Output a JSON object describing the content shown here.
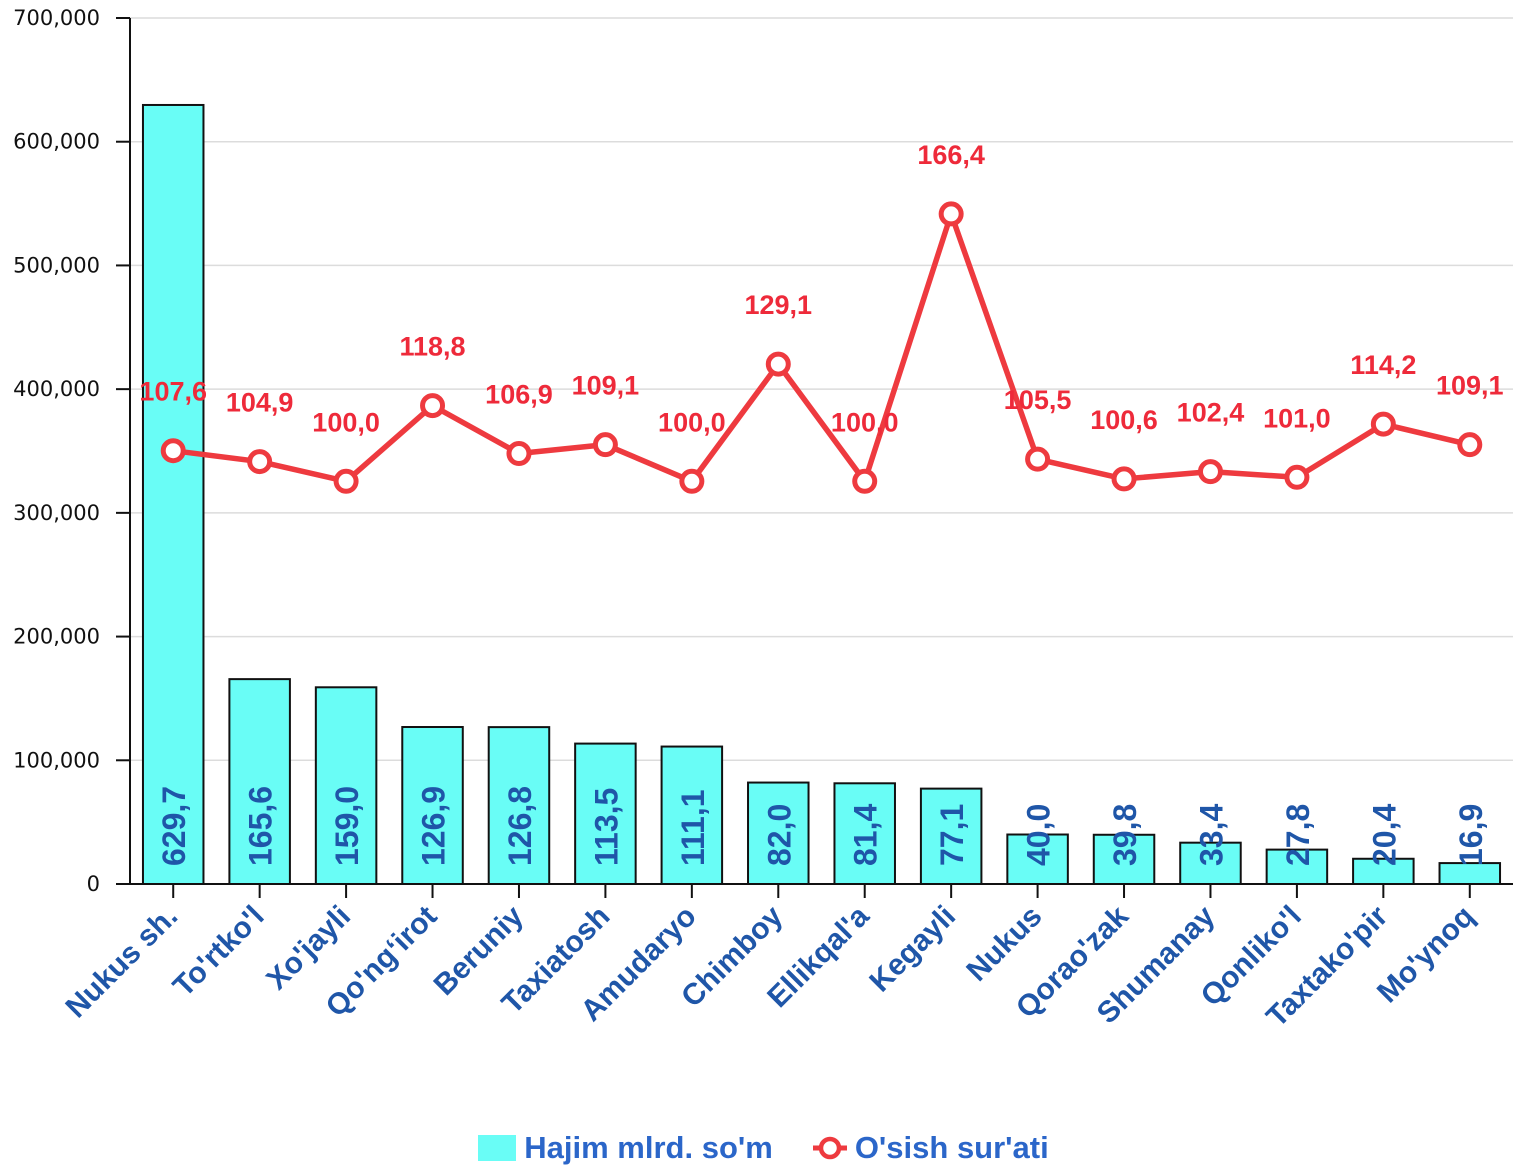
{
  "chart_data": {
    "type": "bar",
    "categories": [
      "Nukus sh.",
      "To'rtko'l",
      "Xo'jayli",
      "Qo'ng‘irot",
      "Beruniy",
      "Taxiatosh",
      "Amudaryo",
      "Chimboy",
      "Ellikqal'a",
      "Kegayli",
      "Nukus",
      "Qorao'zak",
      "Shumanay",
      "Qonliko'l",
      "Taxtako'pir",
      "Mo'ynoq"
    ],
    "series": [
      {
        "name": "Hajim mlrd. so'm",
        "type": "bar",
        "values": [
          629700,
          165600,
          159000,
          126900,
          126800,
          113500,
          111100,
          82000,
          81400,
          77100,
          40000,
          39800,
          33400,
          27800,
          20400,
          16900
        ],
        "labels": [
          "629,7",
          "165,6",
          "159,0",
          "126,9",
          "126,8",
          "113,5",
          "111,1",
          "82,0",
          "81,4",
          "77,1",
          "40,0",
          "39,8",
          "33,4",
          "27,8",
          "20,4",
          "16,9"
        ]
      },
      {
        "name": "O'sish sur'ati",
        "type": "line",
        "values": [
          107.6,
          104.9,
          100.0,
          118.8,
          106.9,
          109.1,
          100.0,
          129.1,
          100.0,
          166.4,
          105.5,
          100.6,
          102.4,
          101.0,
          114.2,
          109.1
        ],
        "labels": [
          "107,6",
          "104,9",
          "100,0",
          "118,8",
          "106,9",
          "109,1",
          "100,0",
          "129,1",
          "100,0",
          "166,4",
          "105,5",
          "100,6",
          "102,4",
          "101,0",
          "114,2",
          "109,1"
        ]
      }
    ],
    "yaxis": {
      "ylim": [
        0,
        700000
      ],
      "ticks": [
        0,
        100000,
        200000,
        300000,
        400000,
        500000,
        600000,
        700000
      ],
      "tick_labels": [
        "0",
        "100,000",
        "200,000",
        "300,000",
        "400,000",
        "500,000",
        "600,000",
        "700,000"
      ]
    },
    "grid": true,
    "legend": "bottom",
    "colors": {
      "bar": "#69fdf6",
      "bar_edge": "#111111",
      "line": "#ee3a3f",
      "bar_label": "#1f56a8",
      "line_label": "#ee2a3a",
      "x_label": "#1f56a8",
      "legend_text": "#2b66c9"
    }
  },
  "legend": {
    "bar_label": "Hajim mlrd. so'm",
    "line_label": "O'sish sur'ati"
  }
}
